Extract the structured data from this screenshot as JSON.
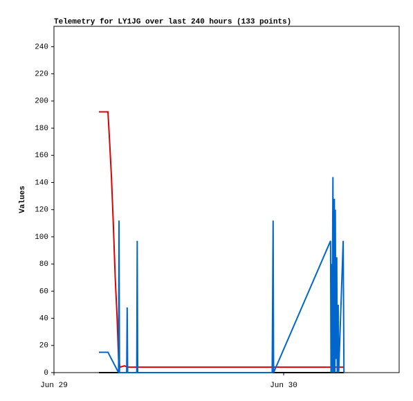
{
  "chart_data": {
    "type": "line",
    "title": "Telemetry for LY1JG over last 240 hours (133 points)",
    "y_label": "Values",
    "xlim": [
      0,
      36.07
    ],
    "xticks": [
      {
        "value": 0,
        "label": "Jun 29"
      },
      {
        "value": 24,
        "label": "Jun 30"
      }
    ],
    "ylim": [
      0,
      255
    ],
    "yticks": [
      0,
      20,
      40,
      60,
      80,
      100,
      120,
      140,
      160,
      180,
      200,
      220,
      240
    ],
    "series": [
      {
        "color": "#000000",
        "x": [
          4.7,
          30.29
        ],
        "values": [
          0,
          0
        ]
      },
      {
        "color": "#dd0000",
        "x": [
          4.7,
          5.64,
          5.8,
          6.0,
          6.2,
          6.4,
          6.6,
          6.75,
          6.9,
          7.37,
          7.67,
          30.29
        ],
        "values": [
          192,
          192,
          172,
          145,
          110,
          70,
          40,
          10,
          4,
          5,
          4,
          4
        ]
      },
      {
        "color": "#0066cc",
        "x": [
          4.7,
          5.64,
          6.75,
          6.8,
          6.85,
          7.6,
          7.65,
          7.7,
          8.65,
          8.7,
          8.75,
          22.8,
          22.85,
          22.9,
          22.95,
          28.9,
          28.95,
          29.0,
          29.05,
          29.15,
          29.2,
          29.3,
          29.35,
          29.4,
          29.45,
          29.55,
          29.6,
          29.7,
          29.75,
          30.22,
          30.3
        ],
        "values": [
          15,
          15,
          0,
          112,
          0,
          0,
          48,
          0,
          0,
          97,
          0,
          0,
          56,
          112,
          0,
          97,
          0,
          80,
          0,
          144,
          0,
          128,
          0,
          120,
          10,
          85,
          0,
          50,
          0,
          97,
          0
        ]
      }
    ]
  }
}
